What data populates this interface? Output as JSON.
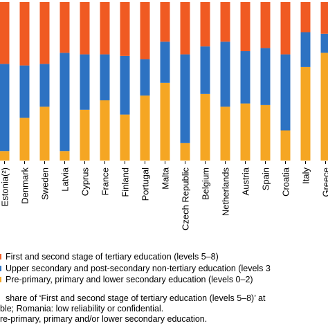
{
  "chart_data": {
    "type": "bar",
    "stacked": true,
    "orientation": "vertical",
    "categories": [
      "Estonia(²)",
      "Denmark",
      "Sweden",
      "Latvia",
      "Cyprus",
      "France",
      "Finland",
      "Portugal",
      "Malta",
      "Czech Republic",
      "Belgium",
      "Netherlands",
      "Austria",
      "Spain",
      "Croatia",
      "Italy",
      "Greece"
    ],
    "series": [
      {
        "name": "Pre-primary, primary and lower secondary education (levels 0–2)",
        "color": "#f5a623",
        "values": [
          6,
          27,
          34,
          6,
          32,
          38,
          29,
          41,
          49,
          11,
          42,
          34,
          36,
          35,
          19,
          59,
          68
        ]
      },
      {
        "name": "Upper secondary and post-secondary non-tertiary education (levels 3",
        "color": "#2d72c2",
        "values": [
          55,
          33,
          27,
          62,
          35,
          29,
          37,
          23,
          26,
          56,
          30,
          41,
          33,
          36,
          48,
          22,
          12
        ]
      },
      {
        "name": "First and second stage of tertiary education (levels 5–8)",
        "color": "#f05a22",
        "values": [
          39,
          40,
          39,
          32,
          33,
          33,
          34,
          36,
          25,
          33,
          28,
          25,
          31,
          29,
          33,
          19,
          20
        ]
      }
    ],
    "ylim": [
      0,
      100
    ],
    "grid": false,
    "legend_position": "bottom"
  },
  "legend": {
    "items": [
      {
        "label": "First and second stage of tertiary education (levels 5–8)",
        "color": "#f05a22"
      },
      {
        "label": "Upper secondary and post-secondary non-tertiary education (levels 3",
        "color": "#2d72c2"
      },
      {
        "label": "Pre-primary, primary and lower secondary education (levels 0–2)",
        "color": "#f5a623"
      }
    ]
  },
  "notes": [
    "share of ‘First and second stage of tertiary education (levels 5–8)’ at",
    "ble; Romania: low reliability or confidential.",
    "re-primary, primary and/or lower secondary education."
  ]
}
